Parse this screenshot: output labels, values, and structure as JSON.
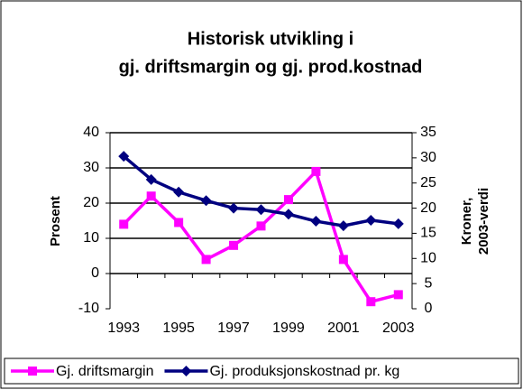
{
  "chart_data": {
    "type": "line",
    "title": [
      "Historisk utvikling i",
      "gj. driftsmargin og gj. prod.kostnad"
    ],
    "ylabel": "Prosent",
    "y2label": [
      "Kroner,",
      "2003-verdi"
    ],
    "categories": [
      "1993",
      null,
      "1995",
      null,
      "1997",
      null,
      "1999",
      null,
      "2001",
      null,
      "2003"
    ],
    "series": [
      {
        "name": "Gj. driftsmargin",
        "color": "#ff00ff",
        "marker": "square",
        "values": [
          14,
          22,
          14.5,
          4,
          8,
          13.5,
          21,
          29,
          4,
          -8,
          -6
        ]
      },
      {
        "name": "Gj. produksjonskostnad pr. kg",
        "color": "#000080",
        "marker": "diamond",
        "axis": "y2",
        "values": [
          30.3,
          25.7,
          23.2,
          21.5,
          20,
          19.7,
          18.8,
          17.4,
          16.5,
          17.6,
          16.9
        ]
      }
    ],
    "ylim": [
      -10,
      40
    ],
    "yticks": [
      -10,
      0,
      10,
      20,
      30,
      40
    ],
    "y2lim": [
      0,
      35
    ],
    "y2ticks": [
      0,
      5,
      10,
      15,
      20,
      25,
      30,
      35
    ],
    "grid": true,
    "legend": "bottom"
  }
}
